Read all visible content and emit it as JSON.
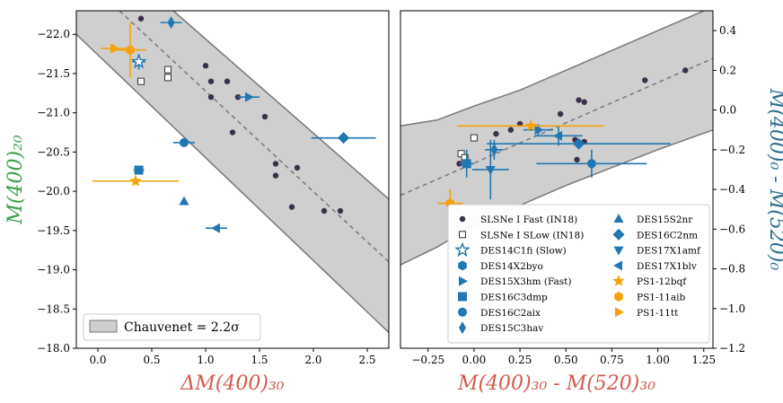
{
  "chart_data": [
    {
      "type": "scatter",
      "panel": "left",
      "xlabel": "ΔM(400)₃₀",
      "ylabel": "M(400)₂₀",
      "xlabel_color": "#d45a4a",
      "ylabel_color": "#3aa14a",
      "xlim": [
        -0.2,
        2.7
      ],
      "ylim": [
        -22.3,
        -18.0
      ],
      "y_inverted": true,
      "xticks": [
        "0.0",
        "0.5",
        "1.0",
        "1.5",
        "2.0",
        "2.5"
      ],
      "xtick_values": [
        0.0,
        0.5,
        1.0,
        1.5,
        2.0,
        2.5
      ],
      "yticks": [
        "−18.0",
        "−18.5",
        "−19.0",
        "−19.5",
        "−20.0",
        "−20.5",
        "−21.0",
        "−21.5",
        "−22.0"
      ],
      "ytick_values": [
        -18.0,
        -18.5,
        -19.0,
        -19.5,
        -20.0,
        -20.5,
        -21.0,
        -21.5,
        -22.0
      ],
      "band": {
        "label": "Chauvenet = 2.2σ",
        "upper_line": [
          [
            -0.2,
            -22.0
          ],
          [
            2.7,
            -18.2
          ]
        ],
        "lower_line": [
          [
            0.7,
            -22.3
          ],
          [
            2.7,
            -19.9
          ]
        ],
        "fit_line": [
          [
            0.2,
            -22.3
          ],
          [
            2.7,
            -19.1
          ]
        ]
      },
      "legend_position": "lower-left",
      "fast_points": [
        [
          0.4,
          -22.2
        ],
        [
          1.0,
          -21.6
        ],
        [
          1.05,
          -21.4
        ],
        [
          1.2,
          -21.4
        ],
        [
          1.05,
          -21.2
        ],
        [
          1.3,
          -21.2
        ],
        [
          1.55,
          -20.95
        ],
        [
          1.25,
          -20.75
        ],
        [
          1.65,
          -20.35
        ],
        [
          1.85,
          -20.3
        ],
        [
          1.65,
          -20.2
        ],
        [
          1.8,
          -19.8
        ],
        [
          2.1,
          -19.75
        ],
        [
          2.25,
          -19.75
        ]
      ],
      "slow_points": [
        [
          0.65,
          -21.55
        ],
        [
          0.65,
          -21.45
        ],
        [
          0.4,
          -21.4
        ]
      ],
      "special": [
        {
          "name": "DES14C1fi",
          "marker": "star-open",
          "color": "#1f77b4",
          "x": 0.38,
          "y": -21.65,
          "xerr": 0.06,
          "yerr": 0.1
        },
        {
          "name": "DES15X3hm",
          "marker": "tri-right",
          "color": "#1f77b4",
          "x": 1.4,
          "y": -21.2,
          "xerr": 0.1,
          "yerr": 0.0
        },
        {
          "name": "DES15C3hav",
          "marker": "diamond-thin",
          "color": "#1f77b4",
          "x": 0.68,
          "y": -22.15,
          "xerr": 0.1,
          "yerr": 0.0
        },
        {
          "name": "DES16C2nm",
          "marker": "diamond",
          "color": "#1f77b4",
          "x": 2.28,
          "y": -20.68,
          "xerr": 0.3,
          "yerr": 0.0
        },
        {
          "name": "DES16C2aix",
          "marker": "circle",
          "color": "#1f77b4",
          "x": 0.8,
          "y": -20.62,
          "xerr": 0.1,
          "yerr": 0.0
        },
        {
          "name": "DES16C3dmp",
          "marker": "square",
          "color": "#1f77b4",
          "x": 0.38,
          "y": -20.27,
          "xerr": 0.05,
          "yerr": 0.03
        },
        {
          "name": "DES15S2nr",
          "marker": "tri-up",
          "color": "#1f77b4",
          "x": 0.8,
          "y": -19.87,
          "xerr": 0.0,
          "yerr": 0.0
        },
        {
          "name": "DES17X1blv",
          "marker": "tri-left",
          "color": "#1f77b4",
          "x": 1.1,
          "y": -19.53,
          "xerr": 0.1,
          "yerr": 0.0
        },
        {
          "name": "PS1-12bqf",
          "marker": "star",
          "color": "#f5a20a",
          "x": 0.35,
          "y": -20.13,
          "xerr": 0.4,
          "yerr": 0.05
        },
        {
          "name": "PS1-11tt",
          "marker": "tri-right",
          "color": "#f5a20a",
          "x": 0.15,
          "y": -21.82,
          "xerr": 0.12,
          "yerr": 0.05
        },
        {
          "name": "PS1-11aib",
          "marker": "hexagon",
          "color": "#f5a20a",
          "x": 0.3,
          "y": -21.8,
          "xerr": 0.15,
          "yerr": 0.35
        }
      ]
    },
    {
      "type": "scatter",
      "panel": "right",
      "xlabel": "M(400)₃₀ - M(520)₃₀",
      "ylabel": "M(400)₀ - M(520)₀",
      "xlabel_color": "#d45a4a",
      "ylabel_color": "#2c6e8e",
      "xlim": [
        -0.4,
        1.3
      ],
      "ylim": [
        -1.2,
        0.5
      ],
      "xticks": [
        "−0.25",
        "0.00",
        "0.25",
        "0.50",
        "0.75",
        "1.00",
        "1.25"
      ],
      "xtick_values": [
        -0.25,
        0.0,
        0.25,
        0.5,
        0.75,
        1.0,
        1.25
      ],
      "yticks": [
        "0.4",
        "0.2",
        "0.0",
        "−0.2",
        "−0.4",
        "−0.6",
        "−0.8",
        "−1.0",
        "−1.2"
      ],
      "ytick_values": [
        0.4,
        0.2,
        0.0,
        -0.2,
        -0.4,
        -0.6,
        -0.8,
        -1.0,
        -1.2
      ],
      "band": {
        "upper_line": [
          [
            -0.4,
            -0.08
          ],
          [
            -0.2,
            -0.05
          ],
          [
            0.0,
            0.02
          ],
          [
            0.25,
            0.1
          ],
          [
            0.5,
            0.2
          ],
          [
            0.75,
            0.3
          ],
          [
            1.0,
            0.4
          ],
          [
            1.3,
            0.52
          ]
        ],
        "lower_line": [
          [
            -0.4,
            -0.78
          ],
          [
            -0.2,
            -0.69
          ],
          [
            0.0,
            -0.58
          ],
          [
            0.25,
            -0.48
          ],
          [
            0.5,
            -0.38
          ],
          [
            0.75,
            -0.29
          ],
          [
            1.0,
            -0.2
          ],
          [
            1.3,
            -0.1
          ]
        ],
        "fit_line": [
          [
            -0.4,
            -0.43
          ],
          [
            1.3,
            0.26
          ]
        ]
      },
      "legend_position": "lower-right",
      "fast_points": [
        [
          0.93,
          0.15
        ],
        [
          1.15,
          0.2
        ],
        [
          0.57,
          0.05
        ],
        [
          0.6,
          0.04
        ],
        [
          0.47,
          -0.02
        ],
        [
          0.25,
          -0.07
        ],
        [
          0.35,
          -0.1
        ],
        [
          0.12,
          -0.12
        ],
        [
          0.2,
          -0.1
        ],
        [
          0.55,
          -0.15
        ],
        [
          0.6,
          -0.16
        ],
        [
          0.56,
          -0.25
        ],
        [
          -0.08,
          -0.27
        ]
      ],
      "slow_points": [
        [
          0.0,
          -0.14
        ],
        [
          -0.07,
          -0.22
        ],
        [
          -0.05,
          -0.24
        ]
      ],
      "special": [
        {
          "name": "DES17X1blv",
          "marker": "tri-left",
          "color": "#1f77b4",
          "x": 0.46,
          "y": -0.13,
          "xerr": 0.13,
          "yerr": 0.05
        },
        {
          "name": "DES16C2nm",
          "marker": "diamond",
          "color": "#1f77b4",
          "x": 0.57,
          "y": -0.17,
          "xerr": 0.5,
          "yerr": 0.0
        },
        {
          "name": "DES17X1amf",
          "marker": "tri-down",
          "color": "#1f77b4",
          "x": 0.09,
          "y": -0.3,
          "xerr": 0.1,
          "yerr": 0.15
        },
        {
          "name": "DES16C2aix",
          "marker": "circle",
          "color": "#1f77b4",
          "x": 0.64,
          "y": -0.27,
          "xerr": 0.3,
          "yerr": 0.07
        },
        {
          "name": "DES16C3dmp",
          "marker": "square",
          "color": "#1f77b4",
          "x": -0.04,
          "y": -0.27,
          "xerr": 0.04,
          "yerr": 0.07
        },
        {
          "name": "DES15C3hav",
          "marker": "diamond-thin",
          "color": "#1f77b4",
          "x": 0.11,
          "y": -0.2,
          "xerr": 0.05,
          "yerr": 0.05
        },
        {
          "name": "DES15X3hm",
          "marker": "tri-right",
          "color": "#1f77b4",
          "x": 0.35,
          "y": -0.1,
          "xerr": 0.08,
          "yerr": 0.03
        },
        {
          "name": "PS1-12bqf",
          "marker": "star",
          "color": "#f5a20a",
          "x": 0.31,
          "y": -0.08,
          "xerr": 0.4,
          "yerr": 0.0
        },
        {
          "name": "PS1-11aib",
          "marker": "hexagon",
          "color": "#f5a20a",
          "x": -0.13,
          "y": -0.47,
          "xerr": 0.07,
          "yerr": 0.07
        }
      ],
      "legend_entries": [
        {
          "label": "SLSNe I Fast (IN18)",
          "marker": "fast",
          "color": "#3b2f4a"
        },
        {
          "label": "SLSNe I SLow (IN18)",
          "marker": "slow",
          "color": "#333333"
        },
        {
          "label": "DES14C1fi (Slow)",
          "marker": "star-open",
          "color": "#1f77b4"
        },
        {
          "label": "DES14X2byo",
          "marker": "hexagon",
          "color": "#1f77b4"
        },
        {
          "label": "DES15X3hm (Fast)",
          "marker": "tri-right",
          "color": "#1f77b4"
        },
        {
          "label": "DES16C3dmp",
          "marker": "square",
          "color": "#1f77b4"
        },
        {
          "label": "DES16C2aix",
          "marker": "circle",
          "color": "#1f77b4"
        },
        {
          "label": "DES15C3hav",
          "marker": "diamond-thin",
          "color": "#1f77b4"
        },
        {
          "label": "DES15S2nr",
          "marker": "tri-up",
          "color": "#1f77b4"
        },
        {
          "label": "DES16C2nm",
          "marker": "diamond",
          "color": "#1f77b4"
        },
        {
          "label": "DES17X1amf",
          "marker": "tri-down",
          "color": "#1f77b4"
        },
        {
          "label": "DES17X1blv",
          "marker": "tri-left",
          "color": "#1f77b4"
        },
        {
          "label": "PS1-12bqf",
          "marker": "star",
          "color": "#f5a20a"
        },
        {
          "label": "PS1-11aib",
          "marker": "hexagon",
          "color": "#f5a20a"
        },
        {
          "label": "PS1-11tt",
          "marker": "tri-right",
          "color": "#f5a20a"
        }
      ]
    }
  ]
}
